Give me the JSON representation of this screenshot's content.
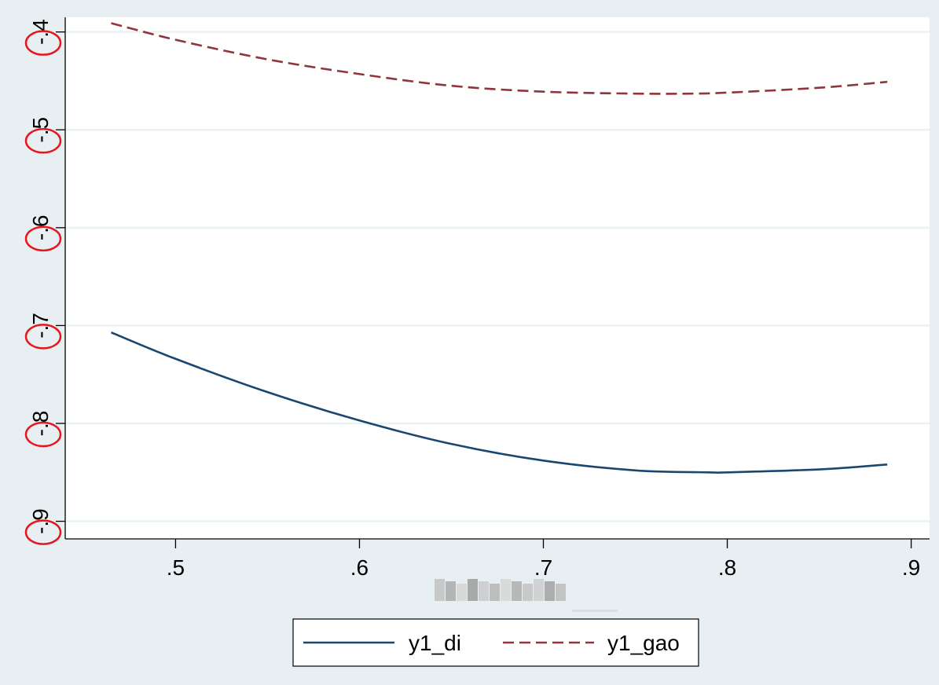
{
  "chart_data": {
    "type": "line",
    "title": "",
    "xlabel": "",
    "ylabel": "",
    "xlim": [
      0.44,
      0.91
    ],
    "ylim": [
      -0.918,
      -0.385
    ],
    "x_ticks": [
      0.5,
      0.6,
      0.7,
      0.8,
      0.9
    ],
    "x_tick_labels": [
      ".5",
      ".6",
      ".7",
      ".8",
      ".9"
    ],
    "y_ticks": [
      -0.4,
      -0.5,
      -0.6,
      -0.7,
      -0.8,
      -0.9
    ],
    "y_tick_labels": [
      "-.4",
      "-.5",
      "-.6",
      "-.7",
      "-.8",
      "-.9"
    ],
    "grid": true,
    "legend_position": "bottom",
    "series": [
      {
        "name": "y1_di",
        "color": "#1a476f",
        "dash": "solid",
        "x": [
          0.465,
          0.5,
          0.55,
          0.6,
          0.65,
          0.7,
          0.75,
          0.79,
          0.8,
          0.85,
          0.887
        ],
        "y": [
          -0.707,
          -0.734,
          -0.768,
          -0.797,
          -0.821,
          -0.838,
          -0.848,
          -0.85,
          -0.85,
          -0.847,
          -0.842
        ]
      },
      {
        "name": "y1_gao",
        "color": "#90353b",
        "dash": "dashed",
        "x": [
          0.465,
          0.5,
          0.55,
          0.6,
          0.65,
          0.7,
          0.75,
          0.78,
          0.8,
          0.85,
          0.887
        ],
        "y": [
          -0.391,
          -0.408,
          -0.428,
          -0.443,
          -0.455,
          -0.461,
          -0.463,
          -0.463,
          -0.462,
          -0.457,
          -0.451
        ]
      }
    ],
    "annotations": {
      "highlight_color": "#e8151b",
      "circled_tick_labels": [
        "-.4",
        "-.5",
        "-.6",
        "-.7",
        "-.8",
        "-.9"
      ]
    }
  }
}
